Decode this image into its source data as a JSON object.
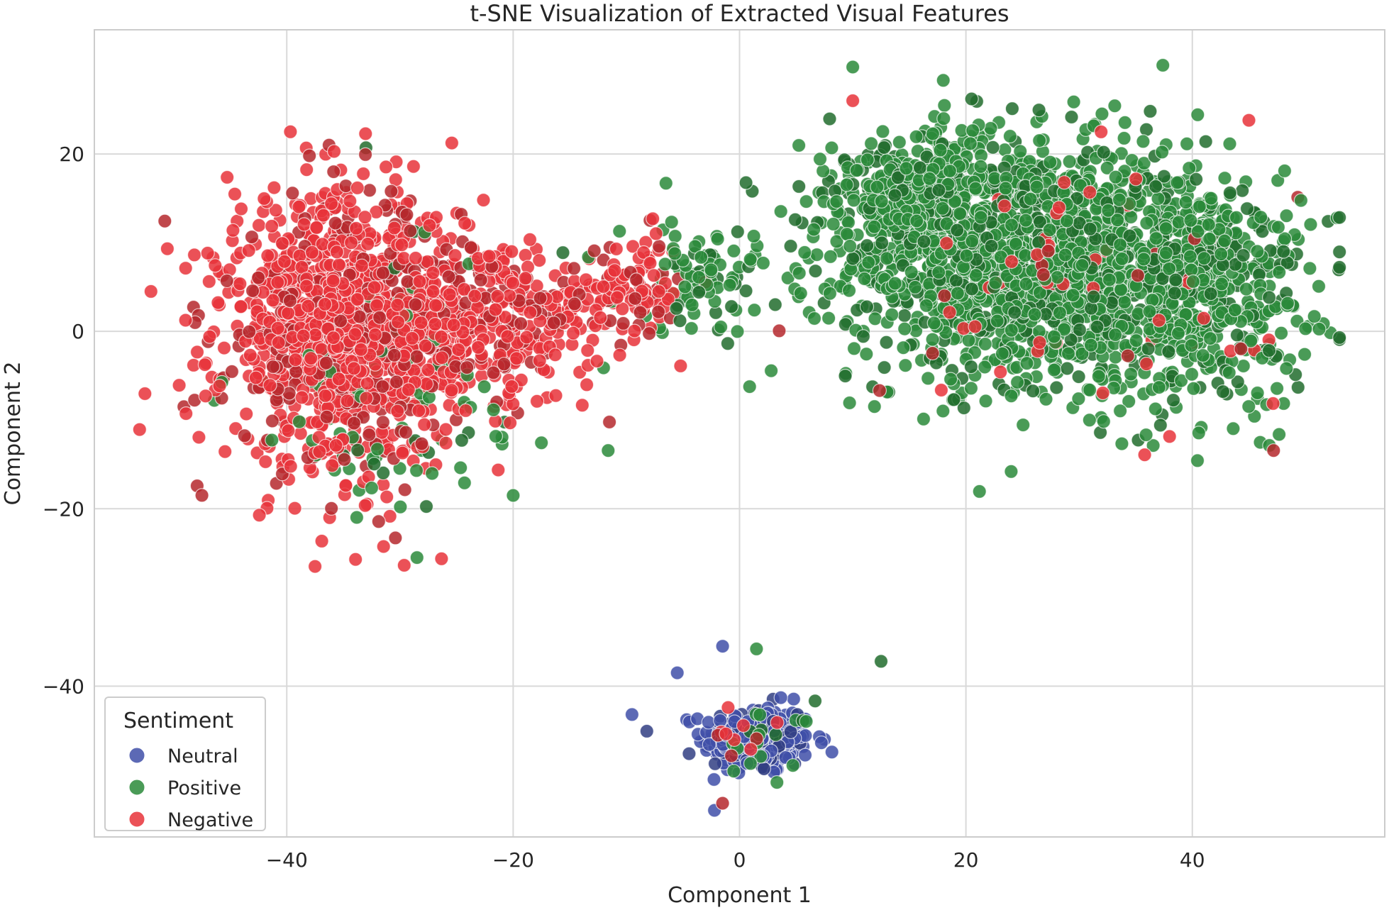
{
  "chart_data": {
    "type": "scatter",
    "title": "t-SNE Visualization of Extracted Visual Features",
    "xlabel": "Component 1",
    "ylabel": "Component 2",
    "xlim": [
      -57,
      57
    ],
    "ylim": [
      -57,
      34
    ],
    "xticks": [
      -40,
      -20,
      0,
      20,
      40
    ],
    "yticks": [
      -40,
      -20,
      0,
      20
    ],
    "xtick_labels": [
      "−40",
      "−20",
      "0",
      "20",
      "40"
    ],
    "ytick_labels": [
      "−40",
      "−20",
      "0",
      "20"
    ],
    "grid": true,
    "legend": {
      "title": "Sentiment",
      "placement": "lower-left",
      "entries": [
        "Neutral",
        "Positive",
        "Negative"
      ]
    },
    "series": [
      {
        "name": "Neutral",
        "color": "#3f4fa8",
        "clusters": [
          {
            "center": [
              1.5,
              -46
            ],
            "spread": [
              3.2,
              2.6
            ],
            "count": 280
          }
        ],
        "points": [
          [
            -1.5,
            -35.5
          ],
          [
            -9.5,
            -43.2
          ],
          [
            -5.5,
            -38.5
          ],
          [
            7.5,
            -46
          ]
        ]
      },
      {
        "name": "Positive",
        "color": "#2a8a3a",
        "clusters": [
          {
            "center": [
              25,
              8
            ],
            "spread": [
              10,
              9
            ],
            "count": 1400
          },
          {
            "center": [
              40,
              5
            ],
            "spread": [
              7,
              9
            ],
            "count": 600
          },
          {
            "center": [
              15,
              15
            ],
            "spread": [
              6,
              5
            ],
            "count": 300
          },
          {
            "center": [
              -3,
              6
            ],
            "spread": [
              5,
              4
            ],
            "count": 90
          },
          {
            "center": [
              -30,
              -8
            ],
            "spread": [
              10,
              10
            ],
            "count": 90
          },
          {
            "center": [
              2,
              -46
            ],
            "spread": [
              3,
              3
            ],
            "count": 18
          }
        ],
        "points": [
          [
            18,
            28.3
          ],
          [
            20.5,
            26.2
          ],
          [
            10,
            29.8
          ],
          [
            -33,
            20.7
          ],
          [
            -6.5,
            16.7
          ],
          [
            12.5,
            -37.2
          ],
          [
            24,
            -15.8
          ],
          [
            1.5,
            -35.8
          ],
          [
            -20,
            -18.5
          ],
          [
            -28.5,
            -25.5
          ],
          [
            52,
            12.4
          ],
          [
            50,
            0.3
          ]
        ]
      },
      {
        "name": "Negative",
        "color": "#e8333a",
        "clusters": [
          {
            "center": [
              -35,
              0
            ],
            "spread": [
              7,
              10
            ],
            "count": 1200
          },
          {
            "center": [
              -22,
              1
            ],
            "spread": [
              6,
              6
            ],
            "count": 300
          },
          {
            "center": [
              -10,
              5
            ],
            "spread": [
              4,
              4
            ],
            "count": 120
          },
          {
            "center": [
              30,
              5
            ],
            "spread": [
              12,
              9
            ],
            "count": 60
          },
          {
            "center": [
              1,
              -46
            ],
            "spread": [
              2.5,
              2.5
            ],
            "count": 10
          }
        ],
        "points": [
          [
            -52,
            4.5
          ],
          [
            -37.5,
            -26.5
          ],
          [
            -38,
            19.8
          ],
          [
            -1.5,
            -53.2
          ],
          [
            45,
            23.8
          ],
          [
            10,
            26
          ]
        ]
      }
    ]
  }
}
